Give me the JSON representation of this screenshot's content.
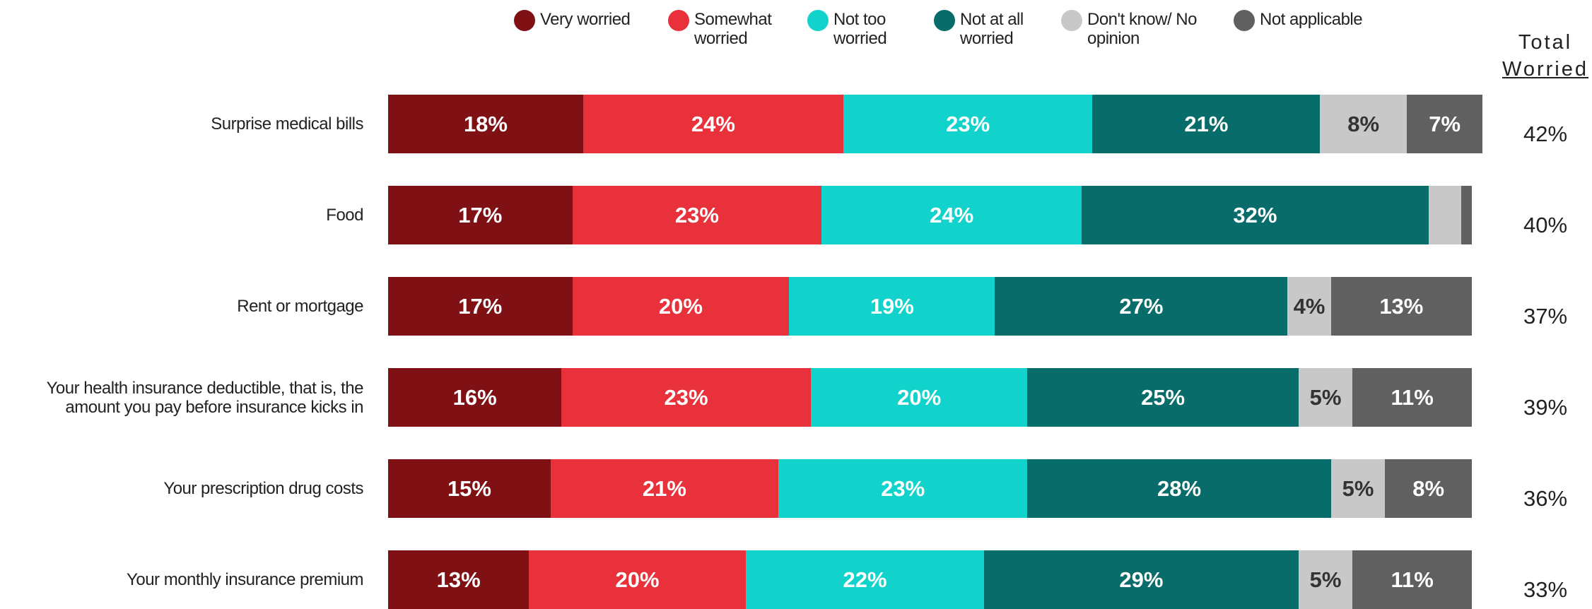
{
  "chart_data": {
    "type": "stacked-bar-horizontal",
    "categories": [
      "Surprise medical bills",
      "Food",
      "Rent or mortgage",
      "Your health insurance deductible, that is, the amount you pay before insurance kicks in",
      "Your prescription drug costs",
      "Your monthly insurance premium"
    ],
    "xlim": [
      0,
      100
    ],
    "series": [
      {
        "name": "Very worried",
        "color": "#7f1014",
        "values": [
          18,
          17,
          17,
          16,
          15,
          13
        ],
        "value_labels": [
          "18%",
          "17%",
          "17%",
          "16%",
          "15%",
          "13%"
        ]
      },
      {
        "name": "Somewhat worried",
        "color": "#e8313a",
        "values": [
          24,
          23,
          20,
          23,
          21,
          20
        ],
        "value_labels": [
          "24%",
          "23%",
          "20%",
          "23%",
          "21%",
          "20%"
        ]
      },
      {
        "name": "Not too worried",
        "color": "#12d3cc",
        "values": [
          23,
          24,
          19,
          20,
          23,
          22
        ],
        "value_labels": [
          "23%",
          "24%",
          "19%",
          "20%",
          "23%",
          "22%"
        ]
      },
      {
        "name": "Not at all worried",
        "color": "#076c6a",
        "values": [
          21,
          32,
          27,
          25,
          28,
          29
        ],
        "value_labels": [
          "21%",
          "32%",
          "27%",
          "25%",
          "28%",
          "29%"
        ]
      },
      {
        "name": "Don't know/ No opinion",
        "color": "#c8c8c8",
        "values": [
          8,
          3,
          4,
          5,
          5,
          5
        ],
        "value_labels": [
          "8%",
          null,
          "4%",
          "5%",
          "5%",
          "5%"
        ]
      },
      {
        "name": "Not applicable",
        "color": "#606060",
        "values": [
          7,
          1,
          13,
          11,
          8,
          11
        ],
        "value_labels": [
          "7%",
          null,
          "13%",
          "11%",
          "8%",
          "11%"
        ]
      }
    ],
    "total_worried": {
      "title_lines": [
        "Total",
        "Worried"
      ],
      "values": [
        42,
        40,
        37,
        39,
        36,
        33
      ],
      "value_labels": [
        "42%",
        "40%",
        "37%",
        "39%",
        "36%",
        "33%"
      ]
    }
  }
}
